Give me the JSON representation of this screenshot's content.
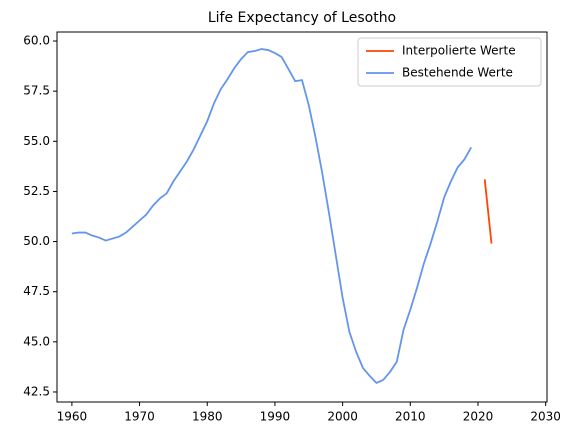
{
  "chart_data": {
    "type": "line",
    "title": "Life Expectancy of Lesotho",
    "x": [
      1960,
      1961,
      1962,
      1963,
      1964,
      1965,
      1966,
      1967,
      1968,
      1969,
      1970,
      1971,
      1972,
      1973,
      1974,
      1975,
      1976,
      1977,
      1978,
      1979,
      1980,
      1981,
      1982,
      1983,
      1984,
      1985,
      1986,
      1987,
      1988,
      1989,
      1990,
      1991,
      1992,
      1993,
      1994,
      1995,
      1996,
      1997,
      1998,
      1999,
      2000,
      2001,
      2002,
      2003,
      2004,
      2005,
      2006,
      2007,
      2008,
      2009,
      2010,
      2011,
      2012,
      2013,
      2014,
      2015,
      2016,
      2017,
      2018,
      2019,
      2020,
      2021,
      2022
    ],
    "series": [
      {
        "name": "Interpolierte Werte",
        "color": "#ff4500",
        "values": [
          null,
          null,
          null,
          null,
          null,
          null,
          null,
          null,
          null,
          null,
          null,
          null,
          null,
          null,
          null,
          null,
          null,
          null,
          null,
          null,
          null,
          null,
          null,
          null,
          null,
          null,
          null,
          null,
          null,
          null,
          null,
          null,
          null,
          null,
          null,
          null,
          null,
          null,
          null,
          null,
          null,
          null,
          null,
          null,
          null,
          null,
          null,
          null,
          null,
          null,
          null,
          null,
          null,
          null,
          null,
          null,
          null,
          null,
          null,
          null,
          null,
          53.1,
          49.9
        ]
      },
      {
        "name": "Bestehende Werte",
        "color": "#6495ed",
        "values": [
          50.4,
          50.45,
          50.45,
          50.3,
          50.2,
          50.05,
          50.15,
          50.25,
          50.45,
          50.75,
          51.05,
          51.35,
          51.8,
          52.15,
          52.4,
          53.0,
          53.5,
          54.0,
          54.6,
          55.3,
          56.0,
          56.9,
          57.6,
          58.1,
          58.65,
          59.1,
          59.45,
          59.5,
          59.6,
          59.55,
          59.4,
          59.2,
          58.6,
          58.0,
          58.05,
          56.8,
          55.2,
          53.4,
          51.4,
          49.3,
          47.2,
          45.5,
          44.5,
          43.7,
          43.3,
          42.95,
          43.1,
          43.5,
          44.0,
          45.6,
          46.6,
          47.7,
          48.9,
          49.9,
          51.0,
          52.2,
          53.0,
          53.7,
          54.1,
          54.7,
          null,
          null,
          null
        ]
      }
    ],
    "xlim": [
      1957.8,
      2030.2
    ],
    "xticks": [
      1960,
      1970,
      1980,
      1990,
      2000,
      2010,
      2020,
      2030
    ],
    "ylim": [
      42.0,
      60.45
    ],
    "yticks": [
      42.5,
      {
        "value": 45,
        "label": "45.0"
      },
      47.5,
      {
        "value": 50,
        "label": "50.0"
      },
      52.5,
      {
        "value": 55,
        "label": "55.0"
      },
      57.5,
      {
        "value": 60,
        "label": "60.0"
      }
    ],
    "legend": "upper right"
  }
}
